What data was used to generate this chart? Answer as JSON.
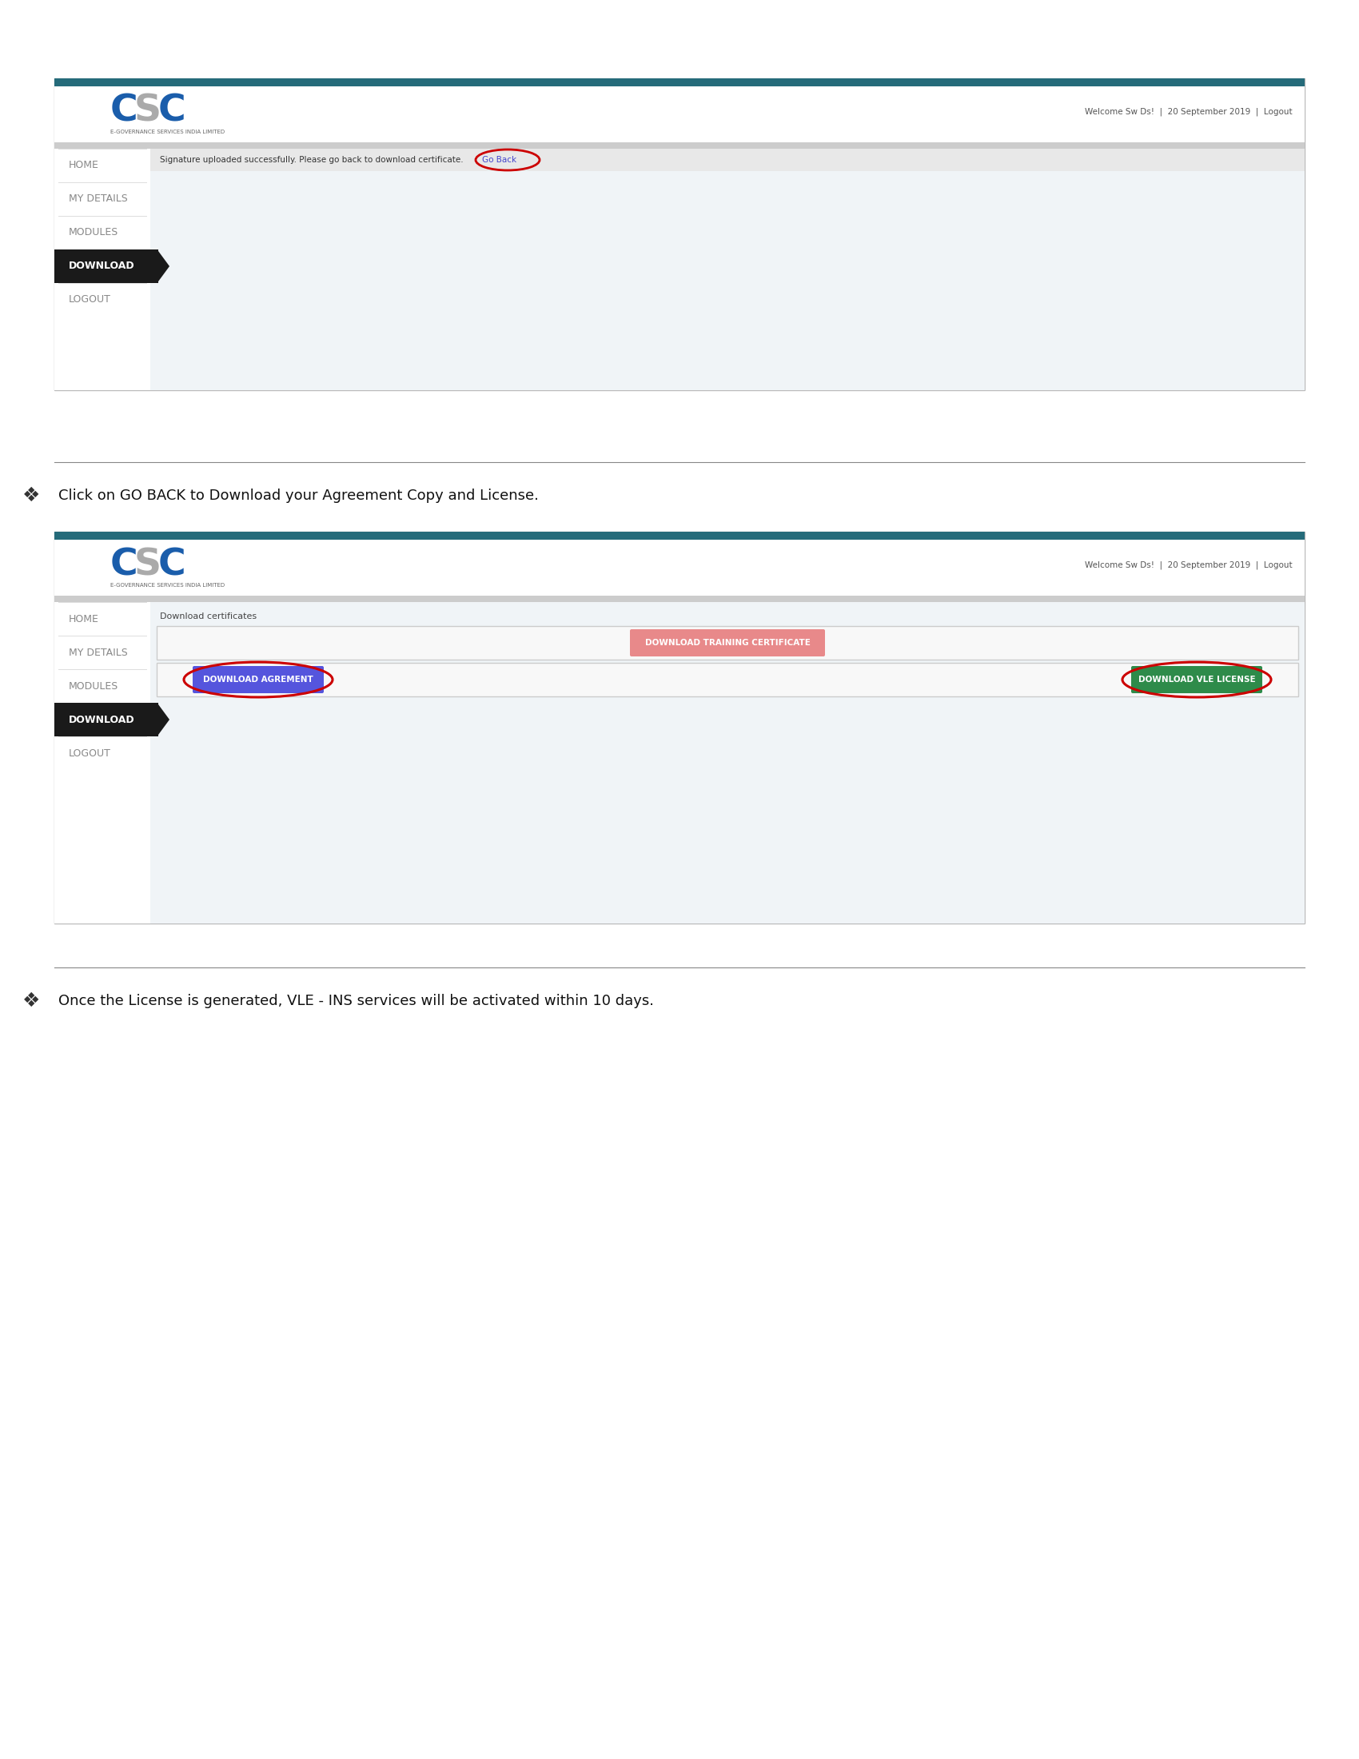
{
  "bg_color": "#ffffff",
  "teal_bar_color": "#256b7a",
  "nav_text_color": "#888888",
  "nav_active_bg": "#1a1a1a",
  "nav_active_text": "#ffffff",
  "csc_C_color": "#1a5dab",
  "csc_S_color": "#aaaaaa",
  "csc_sub_color": "#666666",
  "welcome_text": "Welcome Sw Ds!  |  20 September 2019  |  Logout",
  "nav_items": [
    "HOME",
    "MY DETAILS",
    "MODULES",
    "DOWNLOAD",
    "LOGOUT"
  ],
  "nav_active_index": 3,
  "bullet1_text": "Click on GO BACK to Download your Agreement Copy and License.",
  "bullet2_text": "Once the License is generated, VLE - INS services will be activated within 10 days.",
  "separator_color": "#888888",
  "go_back_color": "#4444cc",
  "download_cert_text": "Download certificates",
  "btn_training_text": "DOWNLOAD TRAINING CERTIFICATE",
  "btn_training_color": "#e8898a",
  "btn_agreement_text": "DOWNLOAD AGREMENT",
  "btn_agreement_color": "#5555dd",
  "btn_license_text": "DOWNLOAD VLE LICENSE",
  "btn_license_color": "#2e8b4a",
  "red_circle_color": "#cc0000",
  "font_size_body": 13,
  "font_size_nav": 9,
  "font_size_btn": 7.5,
  "font_size_welcome": 7.5,
  "font_size_logo": 34
}
